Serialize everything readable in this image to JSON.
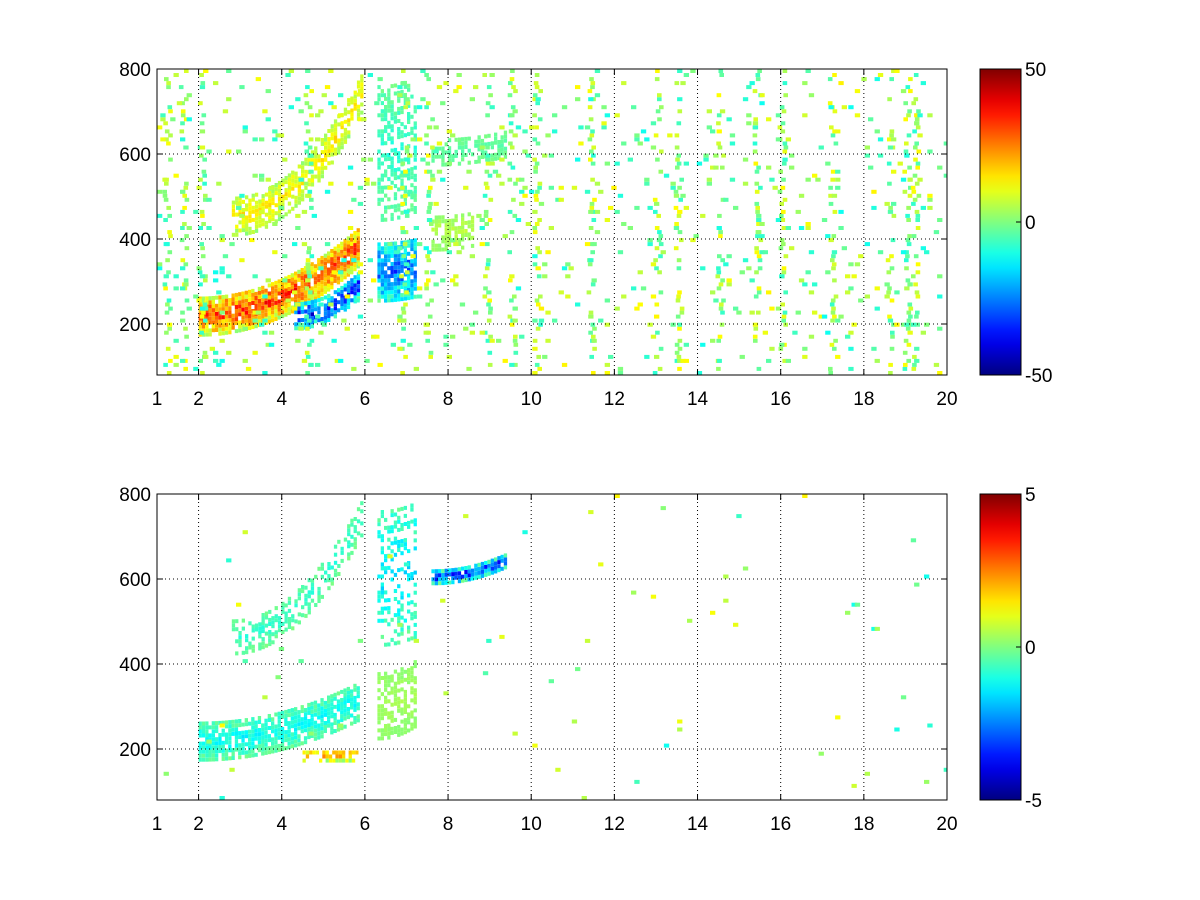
{
  "chart_data": [
    {
      "type": "heatmap",
      "title": "",
      "xlabel": "",
      "ylabel": "",
      "x_ticks": [
        "1",
        "2",
        "4",
        "6",
        "8",
        "10",
        "12",
        "14",
        "16",
        "18",
        "20"
      ],
      "x_tick_values": [
        1,
        2,
        4,
        6,
        8,
        10,
        12,
        14,
        16,
        18,
        20
      ],
      "y_ticks": [
        "200",
        "400",
        "600",
        "800"
      ],
      "y_tick_values": [
        200,
        400,
        600,
        800
      ],
      "xlim": [
        1,
        20
      ],
      "ylim": [
        80,
        800
      ],
      "grid": true,
      "colormap": "jet",
      "colorbar": {
        "ticks": [
          "50",
          "0",
          "-50"
        ],
        "tick_values": [
          50,
          0,
          -50
        ],
        "range": [
          -50,
          50
        ]
      },
      "seed": 17,
      "features": [
        {
          "x": [
            2.0,
            5.85
          ],
          "y_start": 215,
          "y_end": 380,
          "width": 45,
          "value": 32,
          "dense": 0.95
        },
        {
          "x": [
            4.3,
            5.85
          ],
          "y_start": 215,
          "y_end": 290,
          "width": 30,
          "value": -35,
          "dense": 0.85
        },
        {
          "x": [
            2.8,
            5.9
          ],
          "y_start": 450,
          "y_end": 740,
          "width": 45,
          "value": 14,
          "dense": 0.7
        },
        {
          "x": [
            6.3,
            7.2
          ],
          "y_start": 320,
          "y_end": 330,
          "width": 70,
          "value": -28,
          "dense": 0.85
        },
        {
          "x": [
            6.3,
            7.2
          ],
          "y_start": 600,
          "y_end": 620,
          "width": 160,
          "value": -8,
          "dense": 0.45
        },
        {
          "x": [
            7.6,
            9.4
          ],
          "y_start": 600,
          "y_end": 620,
          "width": 30,
          "value": -4,
          "dense": 0.6
        },
        {
          "x": [
            7.6,
            8.6
          ],
          "y_start": 410,
          "y_end": 420,
          "width": 40,
          "value": 6,
          "dense": 0.6
        }
      ],
      "columns": [
        1.2,
        1.6,
        2.05,
        4.6,
        6.9,
        7.5,
        8.9,
        9.5,
        10.1,
        11.4,
        13.0,
        13.5,
        14.5,
        15.4,
        16.0,
        17.2,
        18.6,
        19.0,
        19.2
      ],
      "noise_density": 0.04
    },
    {
      "type": "heatmap",
      "title": "",
      "xlabel": "",
      "ylabel": "",
      "x_ticks": [
        "1",
        "2",
        "4",
        "6",
        "8",
        "10",
        "12",
        "14",
        "16",
        "18",
        "20"
      ],
      "x_tick_values": [
        1,
        2,
        4,
        6,
        8,
        10,
        12,
        14,
        16,
        18,
        20
      ],
      "y_ticks": [
        "200",
        "400",
        "600",
        "800"
      ],
      "y_tick_values": [
        200,
        400,
        600,
        800
      ],
      "xlim": [
        1,
        20
      ],
      "ylim": [
        80,
        800
      ],
      "grid": true,
      "colormap": "jet",
      "colorbar": {
        "ticks": [
          "5",
          "0",
          "-5"
        ],
        "tick_values": [
          5,
          0,
          -5
        ],
        "range": [
          -5,
          5
        ]
      },
      "seed": 53,
      "features": [
        {
          "x": [
            2.0,
            5.85
          ],
          "y_start": 215,
          "y_end": 310,
          "width": 45,
          "value": -1.2,
          "dense": 0.8
        },
        {
          "x": [
            2.8,
            5.9
          ],
          "y_start": 460,
          "y_end": 740,
          "width": 40,
          "value": -0.8,
          "dense": 0.45
        },
        {
          "x": [
            6.3,
            7.2
          ],
          "y_start": 300,
          "y_end": 330,
          "width": 80,
          "value": 0.4,
          "dense": 0.7
        },
        {
          "x": [
            6.3,
            7.2
          ],
          "y_start": 600,
          "y_end": 620,
          "width": 160,
          "value": -1.5,
          "dense": 0.35
        },
        {
          "x": [
            7.6,
            9.4
          ],
          "y_start": 600,
          "y_end": 640,
          "width": 15,
          "value": -3.6,
          "dense": 0.8
        },
        {
          "x": [
            4.5,
            5.8
          ],
          "y_start": 180,
          "y_end": 180,
          "width": 12,
          "value": 2.2,
          "dense": 0.6
        }
      ],
      "columns": [],
      "noise_density": 0.004
    }
  ]
}
